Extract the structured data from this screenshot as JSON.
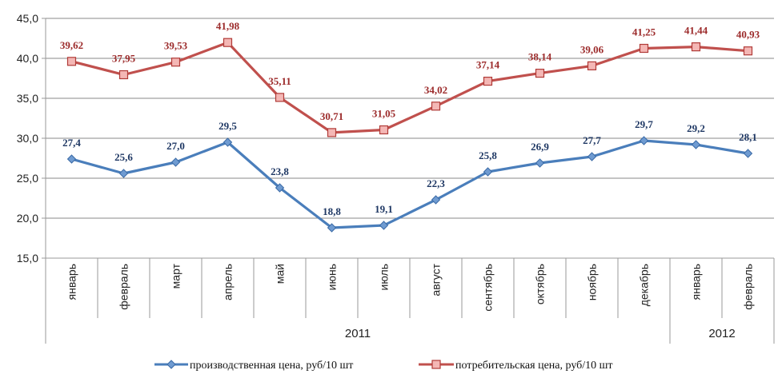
{
  "chart_data": {
    "type": "line",
    "categories": [
      "январь",
      "февраль",
      "март",
      "апрель",
      "май",
      "июнь",
      "июль",
      "август",
      "сентябрь",
      "октябрь",
      "ноябрь",
      "декабрь",
      "январь",
      "февраль"
    ],
    "category_groups": [
      {
        "label": "2011",
        "count": 12
      },
      {
        "label": "2012",
        "count": 2
      }
    ],
    "series": [
      {
        "name": "производственная цена, руб/10 шт",
        "color": "#4a7ebb",
        "marker": "diamond",
        "values": [
          27.4,
          25.6,
          27.0,
          29.5,
          23.8,
          18.8,
          19.1,
          22.3,
          25.8,
          26.9,
          27.7,
          29.7,
          29.2,
          28.1
        ],
        "labels": [
          "27,4",
          "25,6",
          "27,0",
          "29,5",
          "23,8",
          "18,8",
          "19,1",
          "22,3",
          "25,8",
          "26,9",
          "27,7",
          "29,7",
          "29,2",
          "28,1"
        ]
      },
      {
        "name": "потребительская цена, руб/10 шт",
        "color": "#c0504d",
        "marker": "square",
        "values": [
          39.62,
          37.95,
          39.53,
          41.98,
          35.11,
          30.71,
          31.05,
          34.02,
          37.14,
          38.14,
          39.06,
          41.25,
          41.44,
          40.93
        ],
        "labels": [
          "39,62",
          "37,95",
          "39,53",
          "41,98",
          "35,11",
          "30,71",
          "31,05",
          "34,02",
          "37,14",
          "38,14",
          "39,06",
          "41,25",
          "41,44",
          "40,93"
        ]
      }
    ],
    "yticks": [
      15.0,
      20.0,
      25.0,
      30.0,
      35.0,
      40.0,
      45.0
    ],
    "ytick_labels": [
      "15,0",
      "20,0",
      "25,0",
      "30,0",
      "35,0",
      "40,0",
      "45,0"
    ],
    "ylim": [
      15,
      45
    ],
    "grid": "horizontal",
    "legend": "bottom",
    "title": "",
    "xlabel": "",
    "ylabel": ""
  }
}
